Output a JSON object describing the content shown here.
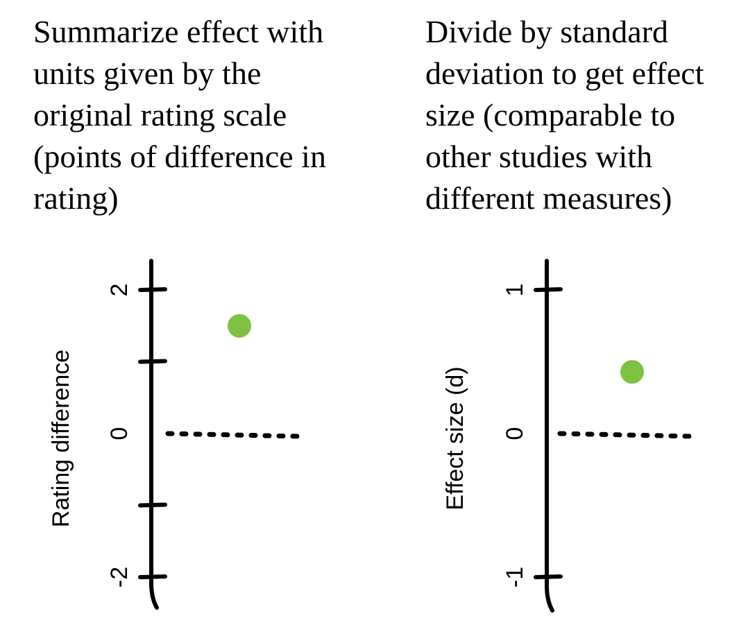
{
  "captions": {
    "left": [
      "Summarize effect with",
      "units given by the",
      "original rating scale",
      "(points of difference in",
      "rating)"
    ],
    "right": [
      "Divide by standard",
      "deviation to get effect",
      "size (comparable to",
      "other studies with",
      "different measures)"
    ]
  },
  "chart_data": [
    {
      "type": "scatter",
      "ylabel": "Rating difference",
      "yticks": [
        2,
        1,
        0,
        -1,
        -2
      ],
      "ytick_labels": [
        "2",
        "",
        "0",
        "",
        "-2"
      ],
      "ylim": [
        -2,
        2
      ],
      "points": [
        {
          "y": 1.5
        }
      ],
      "reference_line_y": 0,
      "colors": {
        "point": "#7dc242",
        "axis": "#000000"
      }
    },
    {
      "type": "scatter",
      "ylabel": "Effect size (d)",
      "yticks": [
        1,
        0,
        -1
      ],
      "ytick_labels": [
        "1",
        "0",
        "-1"
      ],
      "ylim": [
        -1,
        1
      ],
      "points": [
        {
          "y": 0.43
        }
      ],
      "reference_line_y": 0,
      "colors": {
        "point": "#7dc242",
        "axis": "#000000"
      }
    }
  ]
}
